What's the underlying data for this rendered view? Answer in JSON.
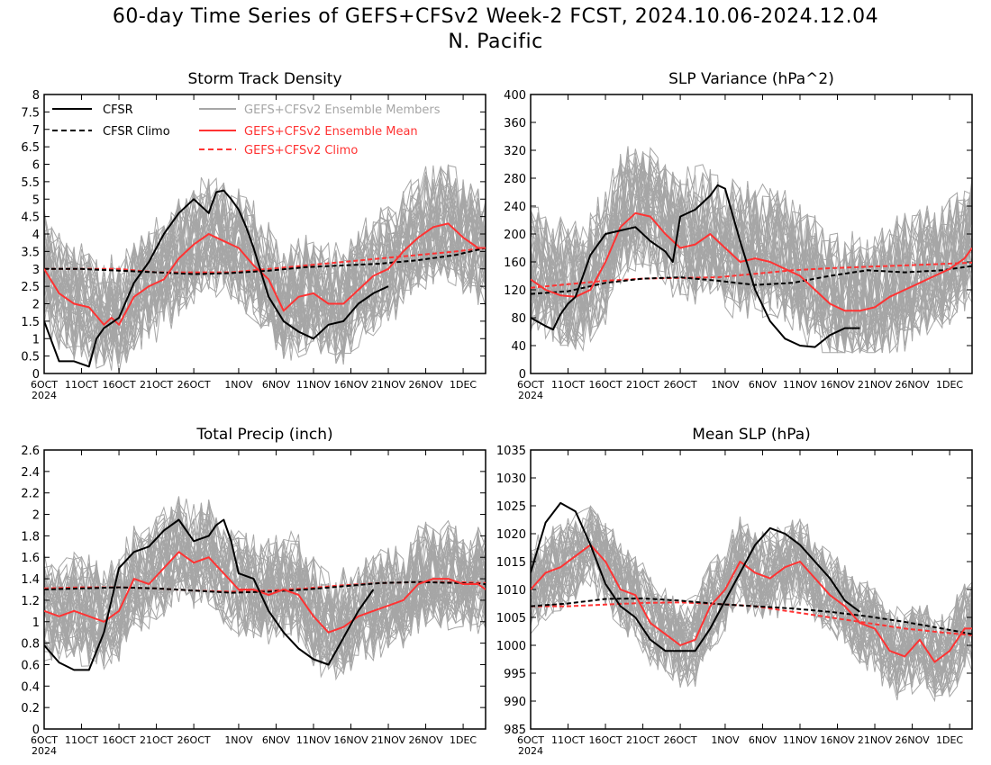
{
  "figure": {
    "title_line1": "60-day Time Series of GEFS+CFSv2 Week-2 FCST, 2024.10.06-2024.12.04",
    "title_line2": "N. Pacific"
  },
  "colors": {
    "cfsr": "#000000",
    "members": "#a6a6a6",
    "ens_mean": "#ff3333",
    "gefs_climo": "#ff3333"
  },
  "legend": {
    "placement": "top of Storm Track Density panel",
    "entries": [
      {
        "label": "CFSR",
        "style": "solid",
        "color": "#000000"
      },
      {
        "label": "CFSR Climo",
        "style": "dashed",
        "color": "#000000"
      },
      {
        "label": "GEFS+CFSv2 Ensemble Members",
        "style": "solid",
        "color": "#a6a6a6"
      },
      {
        "label": "GEFS+CFSv2 Ensemble Mean",
        "style": "solid",
        "color": "#ff3333"
      },
      {
        "label": "GEFS+CFSv2 Climo",
        "style": "dashed",
        "color": "#ff3333"
      }
    ]
  },
  "x_axis": {
    "tick_days": [
      0,
      5,
      10,
      15,
      20,
      26,
      31,
      36,
      41,
      46,
      51,
      56
    ],
    "tick_labels": [
      "6OCT",
      "11OCT",
      "16OCT",
      "21OCT",
      "26OCT",
      "1NOV",
      "6NOV",
      "11NOV",
      "16NOV",
      "21NOV",
      "26NOV",
      "1DEC"
    ],
    "year_label": "2024"
  },
  "chart_data": [
    {
      "type": "line",
      "title": "Storm Track Density",
      "ylim": [
        0,
        8
      ],
      "yticks": [
        0,
        0.5,
        1,
        1.5,
        2,
        2.5,
        3,
        3.5,
        4,
        4.5,
        5,
        5.5,
        6,
        6.5,
        7,
        7.5,
        8
      ],
      "ytick_labels": [
        "0",
        "0.5",
        "1",
        "1.5",
        "2",
        "2.5",
        "3",
        "3.5",
        "4",
        "4.5",
        "5",
        "5.5",
        "6",
        "6.5",
        "7",
        "7.5",
        "8"
      ],
      "series": [
        {
          "name": "CFSR",
          "style": "solid",
          "color": "#000000",
          "x": [
            0,
            2,
            4,
            6,
            7,
            8,
            10,
            12,
            14,
            16,
            18,
            20,
            22,
            23,
            24,
            25,
            26,
            27,
            28,
            29,
            30,
            32,
            34,
            36,
            38,
            40,
            42,
            44,
            46
          ],
          "y": [
            1.5,
            0.35,
            0.35,
            0.2,
            1.0,
            1.3,
            1.6,
            2.6,
            3.2,
            4.0,
            4.6,
            5.0,
            4.6,
            5.2,
            5.25,
            5.0,
            4.7,
            4.2,
            3.6,
            2.9,
            2.2,
            1.5,
            1.2,
            1.0,
            1.4,
            1.5,
            2.0,
            2.3,
            2.5
          ]
        },
        {
          "name": "CFSR Climo",
          "style": "dashed",
          "color": "#000000",
          "x": [
            0,
            5,
            10,
            15,
            20,
            25,
            30,
            35,
            40,
            45,
            50,
            55,
            59
          ],
          "y": [
            3.0,
            3.0,
            2.95,
            2.9,
            2.85,
            2.88,
            2.95,
            3.05,
            3.1,
            3.15,
            3.25,
            3.4,
            3.6
          ]
        },
        {
          "name": "GEFS+CFSv2 Ensemble Mean",
          "style": "solid",
          "color": "#ff3333",
          "x": [
            0,
            2,
            4,
            6,
            8,
            9,
            10,
            12,
            14,
            16,
            18,
            20,
            22,
            24,
            26,
            28,
            30,
            32,
            34,
            36,
            38,
            40,
            42,
            44,
            46,
            48,
            50,
            52,
            54,
            56,
            58,
            59
          ],
          "y": [
            3.0,
            2.3,
            2.0,
            1.9,
            1.4,
            1.6,
            1.4,
            2.2,
            2.5,
            2.7,
            3.3,
            3.7,
            4.0,
            3.8,
            3.6,
            3.1,
            2.7,
            1.8,
            2.2,
            2.3,
            2.0,
            2.0,
            2.4,
            2.8,
            3.0,
            3.5,
            3.9,
            4.2,
            4.3,
            3.9,
            3.6,
            3.6
          ]
        },
        {
          "name": "GEFS+CFSv2 Climo",
          "style": "dashed",
          "color": "#ff3333",
          "x": [
            0,
            5,
            10,
            15,
            20,
            25,
            30,
            35,
            40,
            45,
            50,
            55,
            59
          ],
          "y": [
            3.0,
            3.0,
            3.0,
            2.9,
            2.9,
            2.9,
            3.0,
            3.1,
            3.2,
            3.3,
            3.4,
            3.5,
            3.6
          ]
        }
      ],
      "members": {
        "count": 40,
        "color": "#a6a6a6",
        "spread_below": 1.8,
        "spread_above": 2.0,
        "floor": 0
      }
    },
    {
      "type": "line",
      "title": "SLP Variance (hPa^2)",
      "ylim": [
        0,
        400
      ],
      "yticks": [
        0,
        40,
        80,
        120,
        160,
        200,
        240,
        280,
        320,
        360,
        400
      ],
      "ytick_labels": [
        "0",
        "40",
        "80",
        "120",
        "160",
        "200",
        "240",
        "280",
        "320",
        "360",
        "400"
      ],
      "series": [
        {
          "name": "CFSR",
          "style": "solid",
          "color": "#000000",
          "x": [
            0,
            2,
            3,
            4,
            5,
            6,
            8,
            10,
            12,
            14,
            16,
            18,
            19,
            20,
            22,
            24,
            25,
            26,
            28,
            30,
            32,
            34,
            36,
            38,
            40,
            42,
            44
          ],
          "y": [
            80,
            68,
            63,
            85,
            100,
            110,
            170,
            200,
            205,
            210,
            190,
            175,
            160,
            225,
            235,
            255,
            270,
            265,
            190,
            120,
            75,
            50,
            40,
            38,
            55,
            65,
            65
          ]
        },
        {
          "name": "CFSR Climo",
          "style": "dashed",
          "color": "#000000",
          "x": [
            0,
            5,
            10,
            15,
            20,
            25,
            30,
            35,
            40,
            45,
            50,
            55,
            59
          ],
          "y": [
            114,
            118,
            130,
            136,
            138,
            133,
            127,
            130,
            140,
            148,
            145,
            148,
            154
          ]
        },
        {
          "name": "GEFS+CFSv2 Ensemble Mean",
          "style": "solid",
          "color": "#ff3333",
          "x": [
            0,
            2,
            4,
            6,
            8,
            10,
            12,
            14,
            16,
            18,
            20,
            22,
            24,
            26,
            28,
            30,
            32,
            34,
            36,
            38,
            40,
            42,
            44,
            46,
            48,
            50,
            52,
            54,
            56,
            58,
            59
          ],
          "y": [
            135,
            120,
            112,
            110,
            120,
            160,
            210,
            230,
            225,
            200,
            180,
            185,
            200,
            180,
            160,
            165,
            160,
            150,
            140,
            120,
            100,
            90,
            90,
            95,
            110,
            120,
            130,
            140,
            150,
            165,
            180
          ]
        },
        {
          "name": "GEFS+CFSv2 Climo",
          "style": "dashed",
          "color": "#ff3333",
          "x": [
            0,
            5,
            10,
            15,
            20,
            25,
            30,
            35,
            40,
            45,
            50,
            55,
            59
          ],
          "y": [
            123,
            128,
            133,
            136,
            137,
            138,
            143,
            148,
            151,
            153,
            155,
            157,
            159
          ]
        }
      ],
      "members": {
        "count": 40,
        "color": "#a6a6a6",
        "spread_below": 90,
        "spread_above": 120,
        "floor": 30
      }
    },
    {
      "type": "line",
      "title": "Total Precip (inch)",
      "ylim": [
        0,
        2.6
      ],
      "yticks": [
        0,
        0.2,
        0.4,
        0.6,
        0.8,
        1,
        1.2,
        1.4,
        1.6,
        1.8,
        2,
        2.2,
        2.4,
        2.6
      ],
      "ytick_labels": [
        "0",
        "0.2",
        "0.4",
        "0.6",
        "0.8",
        "1",
        "1.2",
        "1.4",
        "1.6",
        "1.8",
        "2",
        "2.2",
        "2.4",
        "2.6"
      ],
      "series": [
        {
          "name": "CFSR",
          "style": "solid",
          "color": "#000000",
          "x": [
            0,
            2,
            4,
            6,
            8,
            10,
            12,
            14,
            16,
            18,
            20,
            22,
            23,
            24,
            25,
            26,
            28,
            30,
            32,
            34,
            36,
            38,
            40,
            42,
            44
          ],
          "y": [
            0.78,
            0.62,
            0.55,
            0.55,
            0.9,
            1.5,
            1.65,
            1.7,
            1.85,
            1.95,
            1.75,
            1.8,
            1.9,
            1.95,
            1.75,
            1.45,
            1.4,
            1.1,
            0.9,
            0.75,
            0.65,
            0.6,
            0.85,
            1.1,
            1.3
          ]
        },
        {
          "name": "CFSR Climo",
          "style": "dashed",
          "color": "#000000",
          "x": [
            0,
            5,
            10,
            15,
            20,
            25,
            30,
            35,
            40,
            45,
            50,
            55,
            59
          ],
          "y": [
            1.3,
            1.31,
            1.32,
            1.31,
            1.29,
            1.27,
            1.28,
            1.3,
            1.33,
            1.36,
            1.37,
            1.36,
            1.35
          ]
        },
        {
          "name": "GEFS+CFSv2 Ensemble Mean",
          "style": "solid",
          "color": "#ff3333",
          "x": [
            0,
            2,
            4,
            6,
            8,
            10,
            12,
            14,
            16,
            18,
            20,
            22,
            24,
            26,
            28,
            30,
            32,
            34,
            36,
            38,
            40,
            42,
            44,
            46,
            48,
            50,
            52,
            54,
            56,
            58,
            59
          ],
          "y": [
            1.1,
            1.05,
            1.1,
            1.05,
            1.0,
            1.1,
            1.4,
            1.35,
            1.5,
            1.65,
            1.55,
            1.6,
            1.45,
            1.3,
            1.3,
            1.25,
            1.3,
            1.25,
            1.05,
            0.9,
            0.95,
            1.05,
            1.1,
            1.15,
            1.2,
            1.35,
            1.4,
            1.4,
            1.35,
            1.35,
            1.3
          ]
        },
        {
          "name": "GEFS+CFSv2 Climo",
          "style": "dashed",
          "color": "#ff3333",
          "x": [
            0,
            5,
            10,
            15,
            20,
            25,
            30,
            35,
            40,
            45,
            50,
            55,
            59
          ],
          "y": [
            1.31,
            1.32,
            1.32,
            1.31,
            1.29,
            1.28,
            1.29,
            1.31,
            1.34,
            1.36,
            1.37,
            1.37,
            1.36
          ]
        }
      ],
      "members": {
        "count": 40,
        "color": "#a6a6a6",
        "spread_below": 0.5,
        "spread_above": 0.6,
        "floor": 0
      }
    },
    {
      "type": "line",
      "title": "Mean SLP (hPa)",
      "ylim": [
        985,
        1035
      ],
      "yticks": [
        985,
        990,
        995,
        1000,
        1005,
        1010,
        1015,
        1020,
        1025,
        1030,
        1035
      ],
      "ytick_labels": [
        "985",
        "990",
        "995",
        "1000",
        "1005",
        "1010",
        "1015",
        "1020",
        "1025",
        "1030",
        "1035"
      ],
      "series": [
        {
          "name": "CFSR",
          "style": "solid",
          "color": "#000000",
          "x": [
            0,
            2,
            4,
            6,
            8,
            10,
            12,
            14,
            16,
            18,
            20,
            22,
            24,
            26,
            28,
            30,
            32,
            34,
            36,
            38,
            40,
            42,
            44
          ],
          "y": [
            1013,
            1022,
            1025.5,
            1024,
            1018,
            1011,
            1007,
            1005,
            1001,
            999,
            999,
            999,
            1003,
            1008,
            1013,
            1018,
            1021,
            1020,
            1018,
            1015,
            1012,
            1008,
            1006
          ]
        },
        {
          "name": "CFSR Climo",
          "style": "dashed",
          "color": "#000000",
          "x": [
            0,
            5,
            10,
            15,
            20,
            25,
            30,
            35,
            40,
            45,
            50,
            55,
            59
          ],
          "y": [
            1007,
            1007.5,
            1008.3,
            1008.4,
            1008,
            1007.4,
            1007,
            1006.6,
            1006,
            1005.2,
            1004.2,
            1003,
            1002
          ]
        },
        {
          "name": "GEFS+CFSv2 Ensemble Mean",
          "style": "solid",
          "color": "#ff3333",
          "x": [
            0,
            2,
            4,
            6,
            8,
            10,
            12,
            14,
            16,
            18,
            20,
            22,
            24,
            26,
            28,
            30,
            32,
            34,
            36,
            38,
            40,
            42,
            44,
            46,
            48,
            50,
            52,
            54,
            56,
            58,
            59
          ],
          "y": [
            1010,
            1013,
            1014,
            1016,
            1018,
            1015,
            1010,
            1009,
            1004,
            1002,
            1000,
            1001,
            1007,
            1010,
            1015,
            1013,
            1012,
            1014,
            1015,
            1012,
            1009,
            1007,
            1004,
            1003,
            999,
            998,
            1001,
            997,
            999,
            1003,
            1003
          ]
        },
        {
          "name": "GEFS+CFSv2 Climo",
          "style": "dashed",
          "color": "#ff3333",
          "x": [
            0,
            5,
            10,
            15,
            20,
            25,
            30,
            35,
            40,
            45,
            50,
            55,
            59
          ],
          "y": [
            1007,
            1007,
            1007.3,
            1007.6,
            1007.7,
            1007.4,
            1007,
            1006,
            1005,
            1004,
            1003,
            1002.3,
            1001.8
          ]
        }
      ],
      "members": {
        "count": 40,
        "color": "#a6a6a6",
        "spread_below": 9,
        "spread_above": 9,
        "floor": 985
      }
    }
  ]
}
